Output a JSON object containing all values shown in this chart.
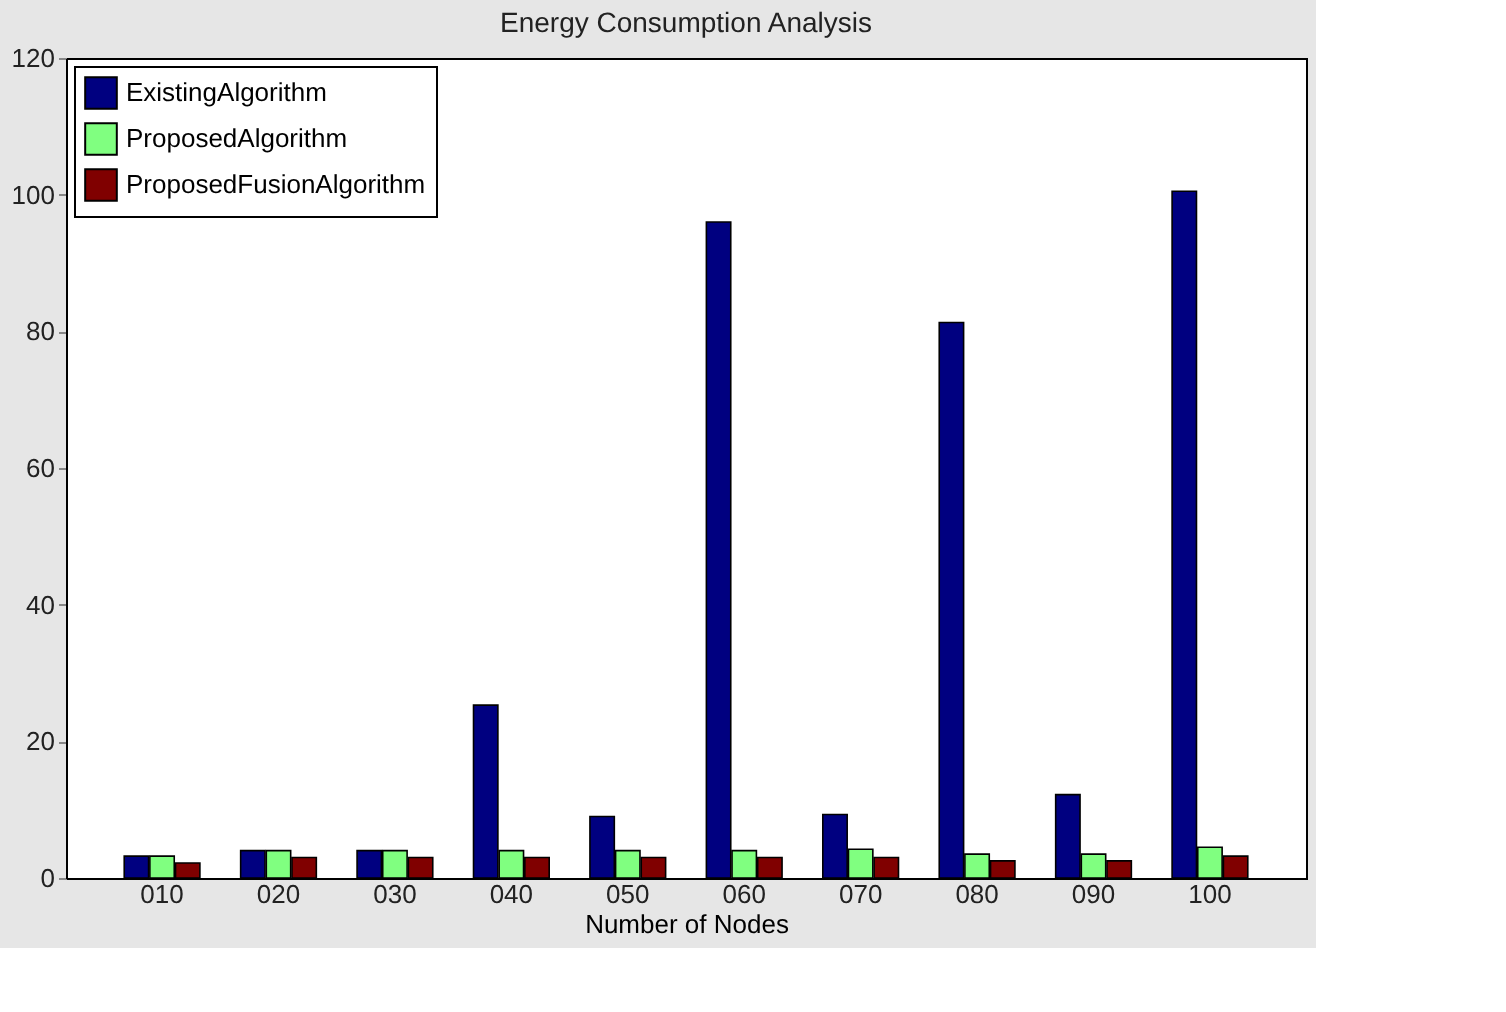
{
  "chart_data": {
    "type": "bar",
    "title": "Energy Consumption Analysis",
    "xlabel": "Number of Nodes",
    "categories": [
      "010",
      "020",
      "030",
      "040",
      "050",
      "060",
      "070",
      "080",
      "090",
      "100"
    ],
    "series": [
      {
        "name": "ExistingAlgorithm",
        "color": "#000080",
        "values": [
          3.2,
          4,
          4,
          25.3,
          9,
          96,
          9.3,
          81.3,
          12.2,
          100.5
        ]
      },
      {
        "name": "ProposedAlgorithm",
        "color": "#80ff80",
        "values": [
          3.2,
          4,
          4,
          4,
          4,
          4,
          4.2,
          3.5,
          3.5,
          4.5
        ]
      },
      {
        "name": "ProposedFusionAlgorithm",
        "color": "#800000",
        "values": [
          2.2,
          3,
          3,
          3,
          3,
          3,
          3,
          2.5,
          2.5,
          3.2
        ]
      }
    ],
    "ylim": [
      0,
      120
    ],
    "yticks": [
      0,
      20,
      40,
      60,
      80,
      100,
      120
    ],
    "grid": false,
    "legend": "top left"
  }
}
